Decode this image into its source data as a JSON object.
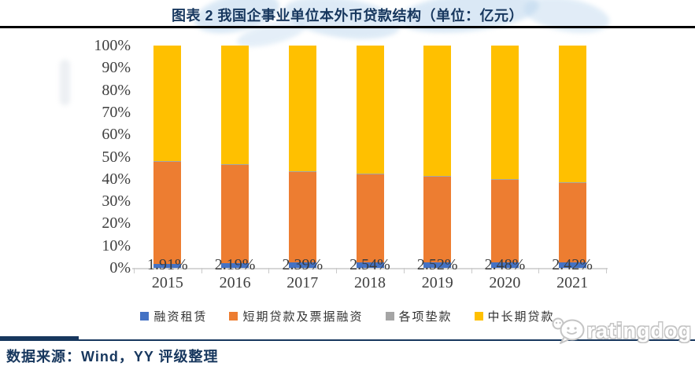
{
  "header": {
    "title": "图表 2 我国企事业单位本外币贷款结构（单位：亿元）"
  },
  "chart_data": {
    "type": "bar",
    "stacked": true,
    "percent_stacked": true,
    "title": "图表 2 我国企事业单位本外币贷款结构（单位：亿元）",
    "categories": [
      "2015",
      "2016",
      "2017",
      "2018",
      "2019",
      "2020",
      "2021"
    ],
    "series": [
      {
        "name": "融资租赁",
        "color": "#4472C4",
        "values": [
          1.91,
          2.19,
          2.39,
          2.54,
          2.52,
          2.48,
          2.42
        ]
      },
      {
        "name": "短期贷款及票据融资",
        "color": "#ED7D31",
        "values": [
          45.8,
          44.2,
          40.7,
          39.4,
          38.5,
          37.3,
          35.7
        ]
      },
      {
        "name": "各项垫款",
        "color": "#A5A5A5",
        "values": [
          0.3,
          0.3,
          0.3,
          0.3,
          0.3,
          0.3,
          0.3
        ]
      },
      {
        "name": "中长期贷款",
        "color": "#FFC000",
        "values": [
          52.0,
          53.3,
          56.6,
          57.8,
          58.7,
          59.9,
          61.6
        ]
      }
    ],
    "data_labels": {
      "series_index": 0,
      "values": [
        "1.91%",
        "2.19%",
        "2.39%",
        "2.54%",
        "2.52%",
        "2.48%",
        "2.42%"
      ]
    },
    "y_ticks": [
      "0%",
      "10%",
      "20%",
      "30%",
      "40%",
      "50%",
      "60%",
      "70%",
      "80%",
      "90%",
      "100%"
    ],
    "ylim": [
      0,
      100
    ],
    "gridlines": false,
    "legend_position": "bottom"
  },
  "footer": {
    "source_text": "数据来源：Wind，YY 评级整理",
    "brand_text": "ratingdog",
    "brand_icon": "wechat-dog-bubble-icon"
  },
  "colors": {
    "title_navy": "#17375E",
    "axis_text": "#3F3F3F",
    "axis_line": "#D6D6D6",
    "top_rule": "#000000",
    "bottom_rule": "#17375E",
    "watermark_blue": "#BDD7EE",
    "brand_outline": "#C4C4C4"
  }
}
